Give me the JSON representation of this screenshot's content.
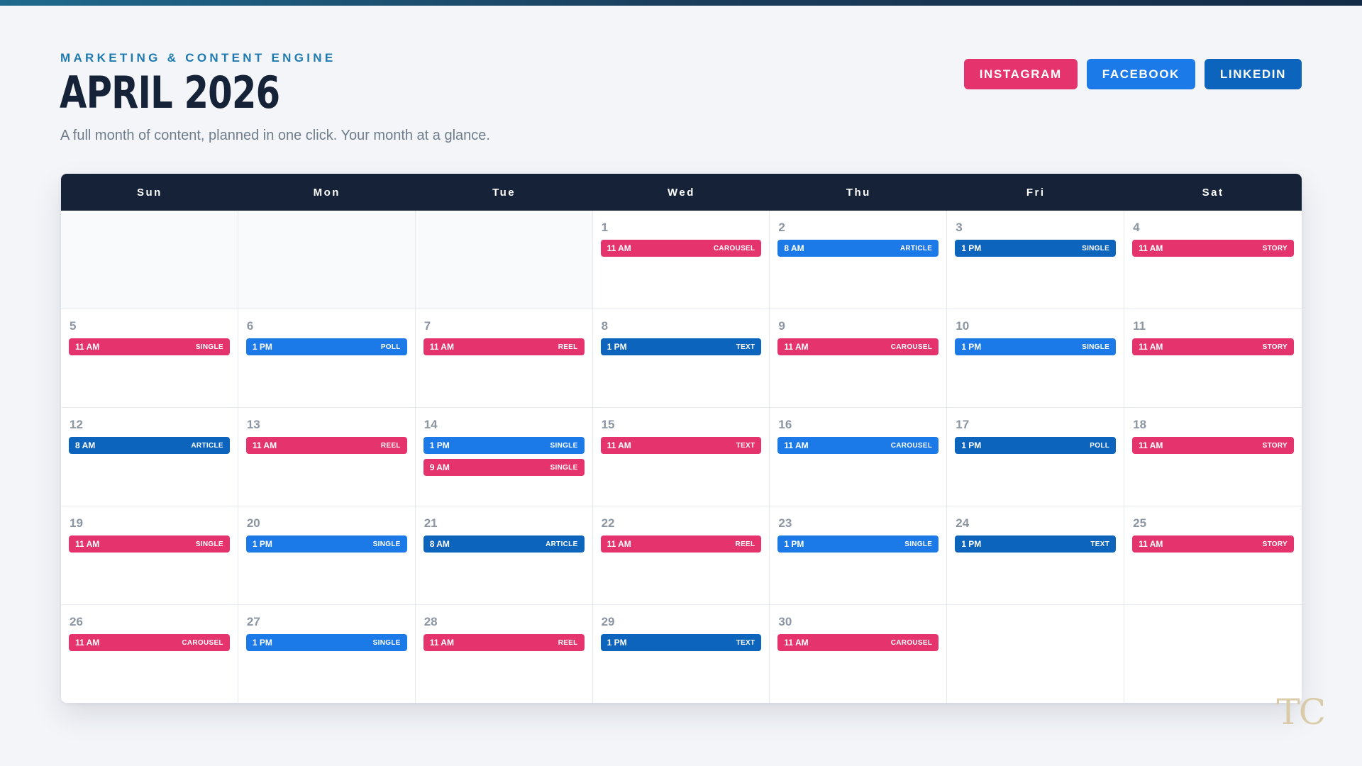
{
  "header": {
    "eyebrow": "MARKETING & CONTENT ENGINE",
    "title": "APRIL 2026",
    "subtitle": "A full month of content, planned in one click. Your month at a glance."
  },
  "platforms": [
    {
      "label": "INSTAGRAM",
      "color": "#e5336d"
    },
    {
      "label": "FACEBOOK",
      "color": "#1b7ae8"
    },
    {
      "label": "LINKEDIN",
      "color": "#0d64bd"
    }
  ],
  "calendar": {
    "day_names": [
      "Sun",
      "Mon",
      "Tue",
      "Wed",
      "Thu",
      "Fri",
      "Sat"
    ],
    "cells": [
      {
        "date": null
      },
      {
        "date": null
      },
      {
        "date": null
      },
      {
        "date": "1",
        "posts": [
          {
            "time": "11 AM",
            "type": "CAROUSEL",
            "platform": "instagram"
          }
        ]
      },
      {
        "date": "2",
        "posts": [
          {
            "time": "8 AM",
            "type": "ARTICLE",
            "platform": "facebook"
          }
        ]
      },
      {
        "date": "3",
        "posts": [
          {
            "time": "1 PM",
            "type": "SINGLE",
            "platform": "linkedin"
          }
        ]
      },
      {
        "date": "4",
        "posts": [
          {
            "time": "11 AM",
            "type": "STORY",
            "platform": "instagram"
          }
        ]
      },
      {
        "date": "5",
        "posts": [
          {
            "time": "11 AM",
            "type": "SINGLE",
            "platform": "instagram"
          }
        ]
      },
      {
        "date": "6",
        "posts": [
          {
            "time": "1 PM",
            "type": "POLL",
            "platform": "facebook"
          }
        ]
      },
      {
        "date": "7",
        "posts": [
          {
            "time": "11 AM",
            "type": "REEL",
            "platform": "instagram"
          }
        ]
      },
      {
        "date": "8",
        "posts": [
          {
            "time": "1 PM",
            "type": "TEXT",
            "platform": "linkedin"
          }
        ]
      },
      {
        "date": "9",
        "posts": [
          {
            "time": "11 AM",
            "type": "CAROUSEL",
            "platform": "instagram"
          }
        ]
      },
      {
        "date": "10",
        "posts": [
          {
            "time": "1 PM",
            "type": "SINGLE",
            "platform": "facebook"
          }
        ]
      },
      {
        "date": "11",
        "posts": [
          {
            "time": "11 AM",
            "type": "STORY",
            "platform": "instagram"
          }
        ]
      },
      {
        "date": "12",
        "posts": [
          {
            "time": "8 AM",
            "type": "ARTICLE",
            "platform": "linkedin"
          }
        ]
      },
      {
        "date": "13",
        "posts": [
          {
            "time": "11 AM",
            "type": "REEL",
            "platform": "instagram"
          }
        ]
      },
      {
        "date": "14",
        "posts": [
          {
            "time": "1 PM",
            "type": "SINGLE",
            "platform": "facebook"
          },
          {
            "time": "9 AM",
            "type": "SINGLE",
            "platform": "instagram"
          }
        ]
      },
      {
        "date": "15",
        "posts": [
          {
            "time": "11 AM",
            "type": "TEXT",
            "platform": "instagram"
          }
        ]
      },
      {
        "date": "16",
        "posts": [
          {
            "time": "11 AM",
            "type": "CAROUSEL",
            "platform": "facebook"
          }
        ]
      },
      {
        "date": "17",
        "posts": [
          {
            "time": "1 PM",
            "type": "POLL",
            "platform": "linkedin"
          }
        ]
      },
      {
        "date": "18",
        "posts": [
          {
            "time": "11 AM",
            "type": "STORY",
            "platform": "instagram"
          }
        ]
      },
      {
        "date": "19",
        "posts": [
          {
            "time": "11 AM",
            "type": "SINGLE",
            "platform": "instagram"
          }
        ]
      },
      {
        "date": "20",
        "posts": [
          {
            "time": "1 PM",
            "type": "SINGLE",
            "platform": "facebook"
          }
        ]
      },
      {
        "date": "21",
        "posts": [
          {
            "time": "8 AM",
            "type": "ARTICLE",
            "platform": "linkedin"
          }
        ]
      },
      {
        "date": "22",
        "posts": [
          {
            "time": "11 AM",
            "type": "REEL",
            "platform": "instagram"
          }
        ]
      },
      {
        "date": "23",
        "posts": [
          {
            "time": "1 PM",
            "type": "SINGLE",
            "platform": "facebook"
          }
        ]
      },
      {
        "date": "24",
        "posts": [
          {
            "time": "1 PM",
            "type": "TEXT",
            "platform": "linkedin"
          }
        ]
      },
      {
        "date": "25",
        "posts": [
          {
            "time": "11 AM",
            "type": "STORY",
            "platform": "instagram"
          }
        ]
      },
      {
        "date": "26",
        "posts": [
          {
            "time": "11 AM",
            "type": "CAROUSEL",
            "platform": "instagram"
          }
        ]
      },
      {
        "date": "27",
        "posts": [
          {
            "time": "1 PM",
            "type": "SINGLE",
            "platform": "facebook"
          }
        ]
      },
      {
        "date": "28",
        "posts": [
          {
            "time": "11 AM",
            "type": "REEL",
            "platform": "instagram"
          }
        ]
      },
      {
        "date": "29",
        "posts": [
          {
            "time": "1 PM",
            "type": "TEXT",
            "platform": "linkedin"
          }
        ]
      },
      {
        "date": "30",
        "posts": [
          {
            "time": "11 AM",
            "type": "CAROUSEL",
            "platform": "instagram"
          }
        ]
      },
      {
        "date": null
      },
      {
        "date": null
      }
    ]
  },
  "platform_colors": {
    "instagram": "#e5336d",
    "facebook": "#1b7ae8",
    "linkedin": "#0d64bd"
  },
  "monogram": "TC"
}
